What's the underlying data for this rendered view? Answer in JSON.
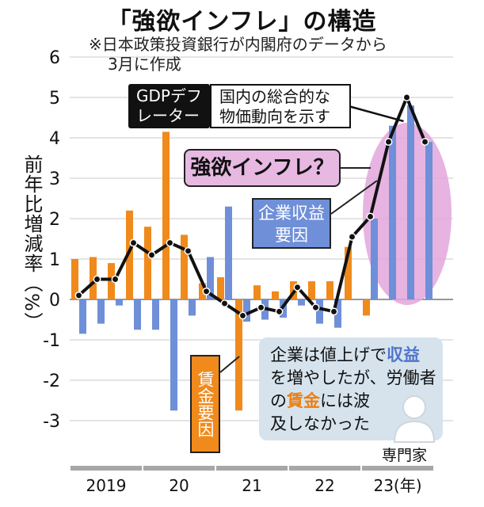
{
  "title": "「強欲インフレ」の構造",
  "note_line1": "※日本政策投資銀行が内閣府のデータから",
  "note_line2": "3月に作成",
  "ylabel": "前年比増減率（%）",
  "gdp_label_line1": "GDPデフ",
  "gdp_label_line2": "レーター",
  "gdp_desc_line1": "国内の総合的な",
  "gdp_desc_line2": "物価動向を示す",
  "callout": "強欲インフレ？",
  "profit_label_line1": "企業収益",
  "profit_label_line2": "要因",
  "wage_label": "賃金要因",
  "quote": {
    "l1a": "企業は値上げで",
    "l1b": "収益",
    "l2": "を増やしたが、労働者",
    "l3a": "の",
    "l3b": "賃金",
    "l3c": "には波",
    "l4": "及しなかった"
  },
  "expert_label": "専門家",
  "colors": {
    "wage": "#f08a1c",
    "profit": "#6f8fd8",
    "deflator": "#111111",
    "highlight": "#e3a6dc",
    "quote_bg": "#d6e3ed"
  },
  "chart_data": {
    "type": "bar",
    "x": [
      "2019Q1",
      "2019Q2",
      "2019Q3",
      "2019Q4",
      "2020Q1",
      "2020Q2",
      "2020Q3",
      "2020Q4",
      "2021Q1",
      "2021Q2",
      "2021Q3",
      "2021Q4",
      "2022Q1",
      "2022Q2",
      "2022Q3",
      "2022Q4",
      "2023Q1",
      "2023Q2",
      "2023Q3",
      "2023Q4"
    ],
    "year_labels": [
      "2019",
      "20",
      "21",
      "22",
      "23(年)"
    ],
    "ylim": [
      -3,
      6
    ],
    "yticks": [
      6,
      5,
      4,
      3,
      2,
      1,
      0,
      -1,
      -2,
      -3
    ],
    "series": [
      {
        "name": "賃金要因",
        "type": "bar",
        "values": [
          1.0,
          1.05,
          0.9,
          2.2,
          1.8,
          4.15,
          1.6,
          0.4,
          0.55,
          -2.75,
          0.35,
          0.2,
          0.45,
          0.45,
          0.45,
          1.3,
          -0.4,
          0.0,
          0.0,
          0.0
        ]
      },
      {
        "name": "企業収益要因",
        "type": "bar",
        "values": [
          -0.85,
          -0.6,
          -0.15,
          -0.75,
          -0.75,
          -2.75,
          -0.4,
          1.05,
          2.3,
          -0.55,
          -0.5,
          -0.45,
          -0.15,
          -0.6,
          -0.7,
          0.0,
          2.0,
          4.3,
          4.8,
          3.9
        ]
      },
      {
        "name": "GDPデフレーター",
        "type": "line",
        "values": [
          0.1,
          0.5,
          0.5,
          1.4,
          1.1,
          1.4,
          1.2,
          0.2,
          -0.1,
          -0.4,
          -0.2,
          -0.3,
          0.3,
          -0.2,
          -0.3,
          1.55,
          2.05,
          3.9,
          5.0,
          3.9
        ]
      }
    ]
  }
}
